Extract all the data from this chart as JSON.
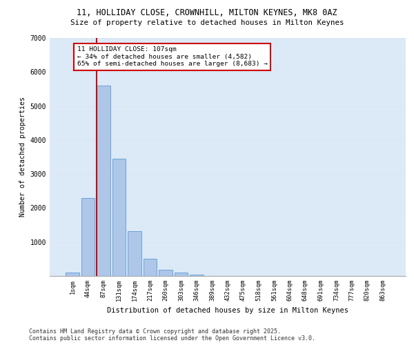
{
  "title_line1": "11, HOLLIDAY CLOSE, CROWNHILL, MILTON KEYNES, MK8 0AZ",
  "title_line2": "Size of property relative to detached houses in Milton Keynes",
  "xlabel": "Distribution of detached houses by size in Milton Keynes",
  "ylabel": "Number of detached properties",
  "categories": [
    "1sqm",
    "44sqm",
    "87sqm",
    "131sqm",
    "174sqm",
    "217sqm",
    "260sqm",
    "303sqm",
    "346sqm",
    "389sqm",
    "432sqm",
    "475sqm",
    "518sqm",
    "561sqm",
    "604sqm",
    "648sqm",
    "691sqm",
    "734sqm",
    "777sqm",
    "820sqm",
    "863sqm"
  ],
  "values": [
    100,
    2300,
    5600,
    3450,
    1320,
    510,
    190,
    105,
    50,
    10,
    0,
    0,
    0,
    0,
    0,
    0,
    0,
    0,
    0,
    0,
    0
  ],
  "bar_color": "#aec6e8",
  "bar_edgecolor": "#5b9bd5",
  "vline_color": "#cc0000",
  "vline_index": 2,
  "annotation_title": "11 HOLLIDAY CLOSE: 107sqm",
  "annotation_line1": "← 34% of detached houses are smaller (4,582)",
  "annotation_line2": "65% of semi-detached houses are larger (8,683) →",
  "annotation_box_color": "#cc0000",
  "ylim": [
    0,
    7000
  ],
  "yticks": [
    0,
    1000,
    2000,
    3000,
    4000,
    5000,
    6000,
    7000
  ],
  "grid_color": "#dce6f1",
  "background_color": "#dce9f7",
  "footer_line1": "Contains HM Land Registry data © Crown copyright and database right 2025.",
  "footer_line2": "Contains public sector information licensed under the Open Government Licence v3.0."
}
